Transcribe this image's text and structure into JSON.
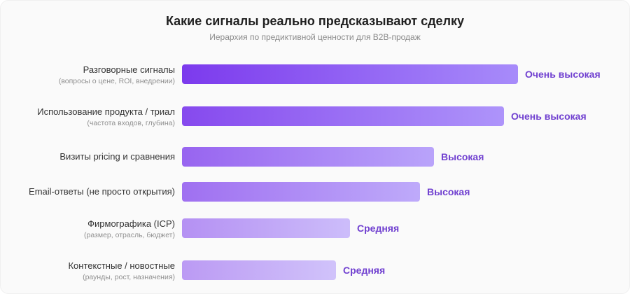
{
  "chart_data": {
    "type": "bar",
    "orientation": "horizontal",
    "title": "Какие сигналы реально предсказывают сделку",
    "subtitle": "Иерархия по предиктивной ценности для B2B-продаж",
    "xlim": [
      0,
      100
    ],
    "grid": false,
    "categories": [
      {
        "label": "Разговорные сигналы",
        "note": "(вопросы о цене, ROI, внедрении)"
      },
      {
        "label": "Использование продукта / триал",
        "note": "(частота входов, глубина)"
      },
      {
        "label": "Визиты pricing и сравнения",
        "note": ""
      },
      {
        "label": "Email-ответы (не просто открытия)",
        "note": ""
      },
      {
        "label": "Фирмографика (ICP)",
        "note": "(размер, отрасль, бюджет)"
      },
      {
        "label": "Контекстные / новостные",
        "note": "(раунды, рост, назначения)"
      }
    ],
    "values": [
      96,
      92,
      72,
      68,
      48,
      44
    ],
    "data_labels": [
      "Очень высокая",
      "Очень высокая",
      "Высокая",
      "Высокая",
      "Средняя",
      "Средняя"
    ],
    "colors": {
      "bar_start": "#7c3aed",
      "bar_end": "#a78bfa",
      "label": "#7040d0"
    },
    "opacity": [
      1,
      0.92,
      0.78,
      0.72,
      0.55,
      0.5
    ]
  }
}
